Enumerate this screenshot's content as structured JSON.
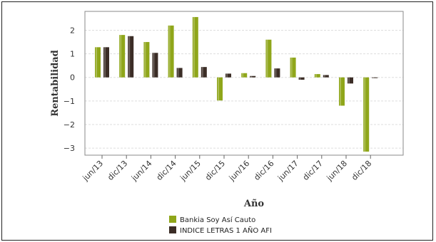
{
  "chart_data": {
    "type": "bar",
    "title": "",
    "xlabel": "Año",
    "ylabel": "Rentabilidad",
    "categories": [
      "jun/13",
      "dic/13",
      "jun/14",
      "dic/14",
      "jun/15",
      "dic/15",
      "jun/16",
      "dic/16",
      "jun/17",
      "dic/17",
      "jun/18",
      "dic/18"
    ],
    "ylim": [
      -3.3,
      2.8
    ],
    "yticks": [
      2,
      1,
      0,
      -1,
      -2,
      -3
    ],
    "grid": true,
    "legend_position": "bottom",
    "series": [
      {
        "name": "Bankia Soy Así Cauto",
        "color": "#8fa61a",
        "values": [
          1.28,
          1.8,
          1.5,
          2.2,
          2.56,
          -0.98,
          0.18,
          1.6,
          0.84,
          0.14,
          -1.2,
          -3.15
        ]
      },
      {
        "name": "INDICE LETRAS 1 AÑO AFI",
        "color": "#3b2d26",
        "values": [
          1.28,
          1.75,
          1.04,
          0.4,
          0.44,
          0.16,
          0.06,
          0.38,
          -0.1,
          0.1,
          -0.26,
          -0.02
        ]
      }
    ]
  }
}
